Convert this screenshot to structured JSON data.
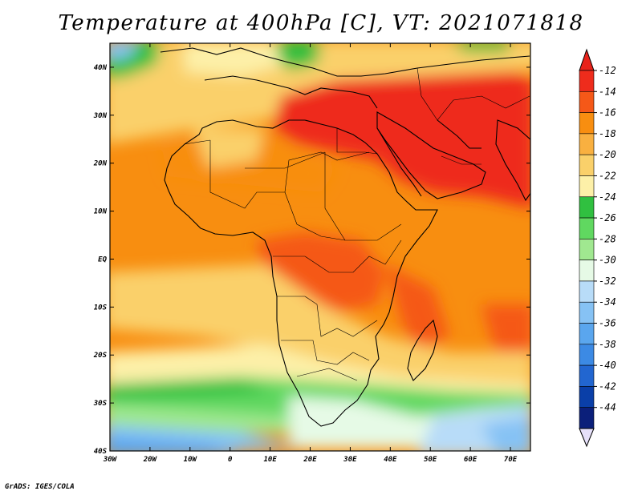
{
  "title": "Temperature at 400hPa [C], VT: 2021071818",
  "credit": "GrADS: IGES/COLA",
  "map": {
    "lon_range": [
      -30,
      75
    ],
    "lat_range": [
      -40,
      45
    ],
    "x_ticks": [
      "30W",
      "20W",
      "10W",
      "0",
      "10E",
      "20E",
      "30E",
      "40E",
      "50E",
      "60E",
      "70E"
    ],
    "y_ticks": [
      "40S",
      "30S",
      "20S",
      "10S",
      "EQ",
      "10N",
      "20N",
      "30N",
      "40N"
    ]
  },
  "colorbar": {
    "levels": [
      "-12",
      "-14",
      "-16",
      "-18",
      "-20",
      "-22",
      "-24",
      "-26",
      "-28",
      "-30",
      "-32",
      "-34",
      "-36",
      "-38",
      "-40",
      "-42",
      "-44"
    ],
    "colors": [
      "#ee2c1c",
      "#f55818",
      "#f88e10",
      "#f9b040",
      "#fad06a",
      "#fdf0a8",
      "#30c040",
      "#60d860",
      "#a0e890",
      "#e6fae6",
      "#b8dcf8",
      "#86c2f4",
      "#5aa6ee",
      "#3c8ae4",
      "#2266d0",
      "#0a3fa8",
      "#0b1f7a"
    ],
    "top_arrow_color": "#e8231a",
    "bottom_arrow_color": "#e6e0fa"
  }
}
